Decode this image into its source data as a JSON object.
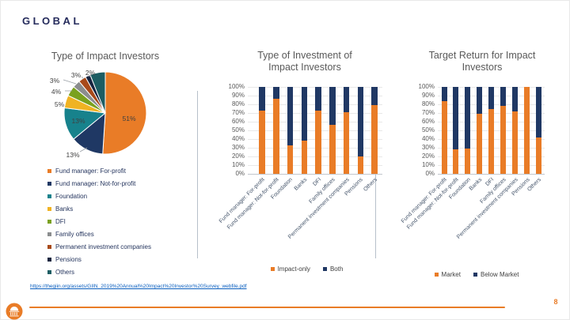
{
  "slide": {
    "header": "GLOBAL",
    "page_number": "8",
    "source_link": "https://thegiin.org/assets/GIIN_2019%20Annual%20Impact%20Investor%20Survey_webfile.pdf"
  },
  "icons": {
    "footer_logo": "rotunda-icon"
  },
  "colors": {
    "accent_orange": "#E97C27",
    "navy": "#203864",
    "title_gray": "#595959",
    "separator": "#B7C0CA",
    "link_blue": "#0B5FBF"
  },
  "chart_data": [
    {
      "type": "pie",
      "title": "Type of Impact Investors",
      "labels": [
        "Fund manager: For-profit",
        "Fund manager: Not-for-profit",
        "Foundation",
        "Banks",
        "DFI",
        "Family offices",
        "Permanent investment companies",
        "Pensions",
        "Others"
      ],
      "values": [
        51,
        13,
        13,
        5,
        4,
        3,
        3,
        2,
        6
      ],
      "colors": [
        "#E97C27",
        "#1F3864",
        "#17828C",
        "#F0B323",
        "#7AA11E",
        "#8B8D8E",
        "#A8491A",
        "#16233F",
        "#1C5D63"
      ],
      "data_labels": [
        "51%",
        "13%",
        "13%",
        "5%",
        "4%",
        "3%",
        "3%",
        "2%",
        ""
      ],
      "legend_position": "bottom-left"
    },
    {
      "type": "bar",
      "stacked": true,
      "title": "Type of Investment of Impact Investors",
      "title_lines": [
        "Type of Investment of",
        "Impact Investors"
      ],
      "categories": [
        "Fund manager: For-profit",
        "Fund manager: Not-for-profit",
        "Foundation",
        "Banks",
        "DFI",
        "Family offices",
        "Permanent investment companies",
        "Pensions",
        "Others"
      ],
      "series": [
        {
          "name": "Impact-only",
          "color": "#E97C27",
          "values": [
            73,
            86,
            33,
            38,
            73,
            56,
            71,
            20,
            79
          ]
        },
        {
          "name": "Both",
          "color": "#203864",
          "values": [
            27,
            14,
            67,
            62,
            27,
            44,
            29,
            80,
            21
          ]
        }
      ],
      "ylim": [
        0,
        100
      ],
      "y_ticks": [
        "0%",
        "10%",
        "20%",
        "30%",
        "40%",
        "50%",
        "60%",
        "70%",
        "80%",
        "90%",
        "100%"
      ],
      "grid": true,
      "legend_position": "bottom"
    },
    {
      "type": "bar",
      "stacked": true,
      "title": "Target Return for Impact Investors",
      "title_lines": [
        "Target Return for Impact",
        "Investors"
      ],
      "categories": [
        "Fund manager: For-profit",
        "Fund manager: Not-for-profit",
        "Foundation",
        "Banks",
        "DFI",
        "Family offices",
        "Permanent investment companies",
        "Pensions",
        "Others"
      ],
      "series": [
        {
          "name": "Market",
          "color": "#E97C27",
          "values": [
            84,
            28,
            29,
            69,
            75,
            78,
            72,
            100,
            42
          ]
        },
        {
          "name": "Below Market",
          "color": "#203864",
          "values": [
            16,
            72,
            71,
            31,
            25,
            22,
            28,
            0,
            58
          ]
        }
      ],
      "ylim": [
        0,
        100
      ],
      "y_ticks": [
        "0%",
        "10%",
        "20%",
        "30%",
        "40%",
        "50%",
        "60%",
        "70%",
        "80%",
        "90%",
        "100%"
      ],
      "grid": true,
      "legend_position": "bottom"
    }
  ]
}
